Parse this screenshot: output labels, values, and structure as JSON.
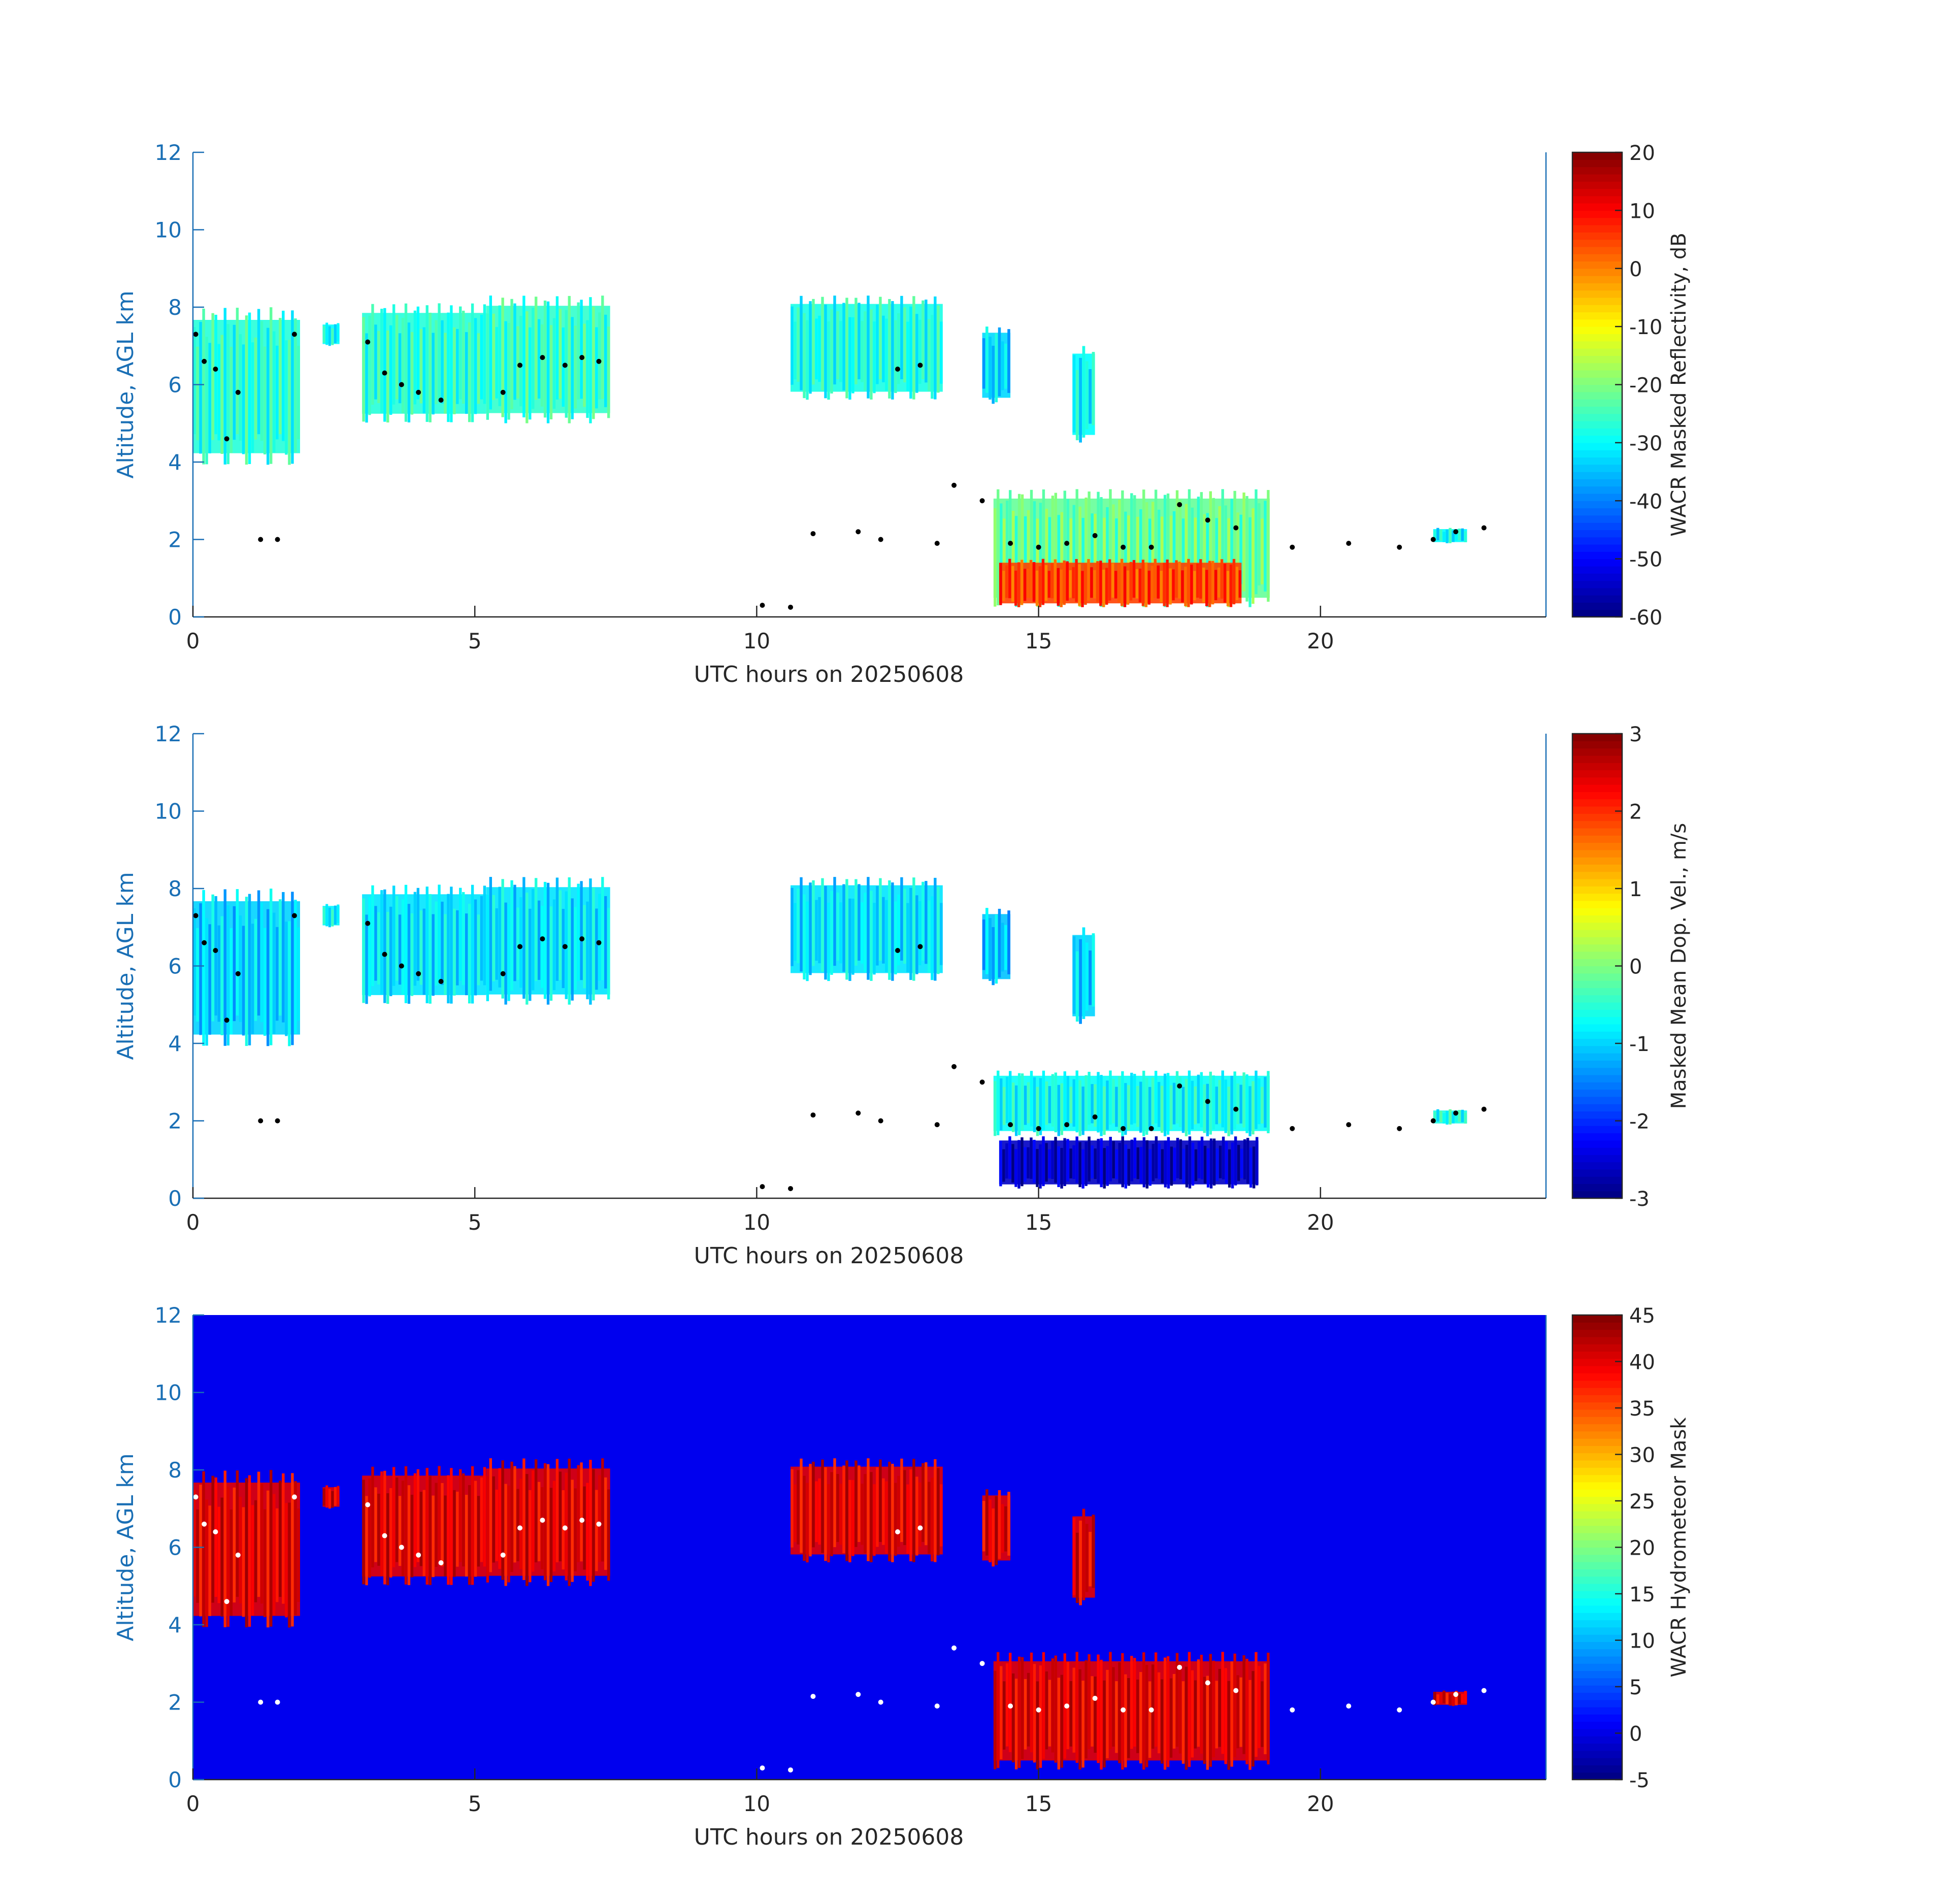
{
  "figure": {
    "axis_color": "#1a6fb5",
    "label_color": "#262626",
    "bg_color": "#ffffff"
  },
  "chart_data": [
    {
      "type": "heatmap",
      "panel": "reflectivity",
      "xlabel": "UTC hours on 20250608",
      "ylabel": "Altitude, AGL km",
      "xlim": [
        0,
        24
      ],
      "ylim": [
        0,
        12
      ],
      "xticks": [
        0,
        5,
        10,
        15,
        20
      ],
      "yticks": [
        0,
        2,
        4,
        6,
        8,
        10,
        12
      ],
      "background": "#ffffff",
      "colorbar": {
        "label": "WACR Masked Reflectivity, dB",
        "ticks": [
          -60,
          -50,
          -40,
          -30,
          -20,
          -10,
          0,
          10,
          20
        ],
        "lim": [
          -60,
          20
        ],
        "colormap": "jet"
      },
      "echo_regions": [
        {
          "x0": 0.0,
          "x1": 1.9,
          "y0": 3.9,
          "y1": 8.0,
          "value": -27
        },
        {
          "x0": 2.3,
          "x1": 2.6,
          "y0": 7.0,
          "y1": 7.6,
          "value": -30
        },
        {
          "x0": 3.0,
          "x1": 5.2,
          "y0": 5.0,
          "y1": 8.1,
          "value": -27
        },
        {
          "x0": 5.2,
          "x1": 7.4,
          "y0": 5.0,
          "y1": 8.3,
          "value": -26
        },
        {
          "x0": 10.6,
          "x1": 13.3,
          "y0": 5.6,
          "y1": 8.3,
          "value": -28
        },
        {
          "x0": 14.0,
          "x1": 14.5,
          "y0": 5.5,
          "y1": 7.5,
          "value": -33
        },
        {
          "x0": 15.6,
          "x1": 16.0,
          "y0": 4.5,
          "y1": 7.0,
          "value": -30
        },
        {
          "x0": 14.2,
          "x1": 19.1,
          "y0": 0.25,
          "y1": 3.3,
          "value": -22
        },
        {
          "x0": 14.3,
          "x1": 18.6,
          "y0": 0.25,
          "y1": 1.5,
          "value": 5
        },
        {
          "x0": 22.0,
          "x1": 22.6,
          "y0": 1.9,
          "y1": 2.3,
          "value": -30
        }
      ],
      "cloud_base_points": [
        [
          0.05,
          7.3
        ],
        [
          0.2,
          6.6
        ],
        [
          0.4,
          6.4
        ],
        [
          0.6,
          4.6
        ],
        [
          0.8,
          5.8
        ],
        [
          1.2,
          2.0
        ],
        [
          1.5,
          2.0
        ],
        [
          1.8,
          7.3
        ],
        [
          3.1,
          7.1
        ],
        [
          3.4,
          6.3
        ],
        [
          3.7,
          6.0
        ],
        [
          4.0,
          5.8
        ],
        [
          4.4,
          5.6
        ],
        [
          5.5,
          5.8
        ],
        [
          5.8,
          6.5
        ],
        [
          6.2,
          6.7
        ],
        [
          6.6,
          6.5
        ],
        [
          6.9,
          6.7
        ],
        [
          7.2,
          6.6
        ],
        [
          10.1,
          0.3
        ],
        [
          10.6,
          0.25
        ],
        [
          11.0,
          2.15
        ],
        [
          11.8,
          2.2
        ],
        [
          12.2,
          2.0
        ],
        [
          12.5,
          6.4
        ],
        [
          12.9,
          6.5
        ],
        [
          13.2,
          1.9
        ],
        [
          13.5,
          3.4
        ],
        [
          14.0,
          3.0
        ],
        [
          14.5,
          1.9
        ],
        [
          15.0,
          1.8
        ],
        [
          15.5,
          1.9
        ],
        [
          16.0,
          2.1
        ],
        [
          16.5,
          1.8
        ],
        [
          17.0,
          1.8
        ],
        [
          17.5,
          2.9
        ],
        [
          18.0,
          2.5
        ],
        [
          18.5,
          2.3
        ],
        [
          19.5,
          1.8
        ],
        [
          20.5,
          1.9
        ],
        [
          21.4,
          1.8
        ],
        [
          22.0,
          2.0
        ],
        [
          22.4,
          2.2
        ],
        [
          22.9,
          2.3
        ]
      ]
    },
    {
      "type": "heatmap",
      "panel": "doppler_velocity",
      "xlabel": "UTC hours on 20250608",
      "ylabel": "Altitude, AGL km",
      "xlim": [
        0,
        24
      ],
      "ylim": [
        0,
        12
      ],
      "xticks": [
        0,
        5,
        10,
        15,
        20
      ],
      "yticks": [
        0,
        2,
        4,
        6,
        8,
        10,
        12
      ],
      "background": "#ffffff",
      "colorbar": {
        "label": "Masked Mean Dop. Vel., m/s",
        "ticks": [
          -3,
          -2,
          -1,
          0,
          1,
          2,
          3
        ],
        "lim": [
          -3,
          3
        ],
        "colormap": "jet"
      },
      "echo_regions": [
        {
          "x0": 0.0,
          "x1": 1.9,
          "y0": 3.9,
          "y1": 8.0,
          "value": -1.0
        },
        {
          "x0": 2.3,
          "x1": 2.6,
          "y0": 7.0,
          "y1": 7.6,
          "value": -0.8
        },
        {
          "x0": 3.0,
          "x1": 5.2,
          "y0": 5.0,
          "y1": 8.1,
          "value": -0.9
        },
        {
          "x0": 5.2,
          "x1": 7.4,
          "y0": 5.0,
          "y1": 8.3,
          "value": -0.9
        },
        {
          "x0": 10.6,
          "x1": 13.3,
          "y0": 5.6,
          "y1": 8.3,
          "value": -0.9
        },
        {
          "x0": 14.0,
          "x1": 14.5,
          "y0": 5.5,
          "y1": 7.5,
          "value": -1.1
        },
        {
          "x0": 15.6,
          "x1": 16.0,
          "y0": 4.5,
          "y1": 7.0,
          "value": -1.0
        },
        {
          "x0": 14.2,
          "x1": 19.1,
          "y0": 1.6,
          "y1": 3.3,
          "value": -0.7
        },
        {
          "x0": 14.3,
          "x1": 18.9,
          "y0": 0.25,
          "y1": 1.6,
          "value": -2.6
        },
        {
          "x0": 22.0,
          "x1": 22.6,
          "y0": 1.9,
          "y1": 2.3,
          "value": -0.6
        }
      ]
    },
    {
      "type": "heatmap",
      "panel": "hydrometeor_mask",
      "xlabel": "UTC hours on 20250608",
      "ylabel": "Altitude, AGL km",
      "xlim": [
        0,
        24
      ],
      "ylim": [
        0,
        12
      ],
      "xticks": [
        0,
        5,
        10,
        15,
        20
      ],
      "yticks": [
        0,
        2,
        4,
        6,
        8,
        10,
        12
      ],
      "background": "#0000ee",
      "colorbar": {
        "label": "WACR Hydrometeor Mask",
        "ticks": [
          -5,
          0,
          5,
          10,
          15,
          20,
          25,
          30,
          35,
          40,
          45
        ],
        "lim": [
          -5,
          45
        ],
        "colormap": "jet"
      },
      "echo_regions": [
        {
          "x0": 0.0,
          "x1": 1.9,
          "y0": 3.9,
          "y1": 8.0,
          "value": 40
        },
        {
          "x0": 2.3,
          "x1": 2.6,
          "y0": 7.0,
          "y1": 7.6,
          "value": 40
        },
        {
          "x0": 3.0,
          "x1": 5.2,
          "y0": 5.0,
          "y1": 8.1,
          "value": 40
        },
        {
          "x0": 5.2,
          "x1": 7.4,
          "y0": 5.0,
          "y1": 8.3,
          "value": 40
        },
        {
          "x0": 10.6,
          "x1": 13.3,
          "y0": 5.6,
          "y1": 8.3,
          "value": 40
        },
        {
          "x0": 14.0,
          "x1": 14.5,
          "y0": 5.5,
          "y1": 7.5,
          "value": 40
        },
        {
          "x0": 15.6,
          "x1": 16.0,
          "y0": 4.5,
          "y1": 7.0,
          "value": 40
        },
        {
          "x0": 14.2,
          "x1": 19.1,
          "y0": 0.25,
          "y1": 3.3,
          "value": 40
        },
        {
          "x0": 22.0,
          "x1": 22.6,
          "y0": 1.9,
          "y1": 2.3,
          "value": 40
        }
      ]
    }
  ]
}
